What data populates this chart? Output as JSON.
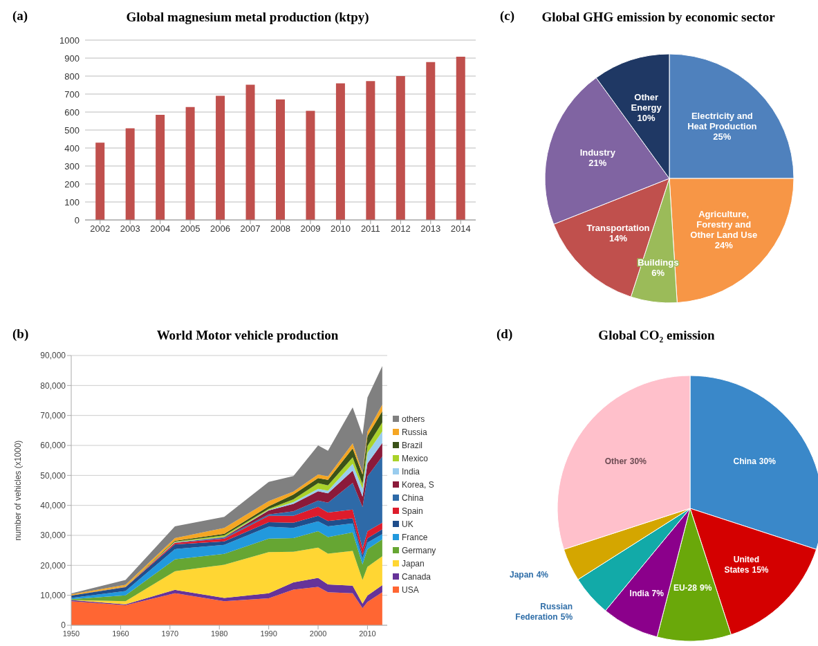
{
  "chart_data": [
    {
      "type": "bar",
      "title": "Global magnesium metal production (ktpy)",
      "annotations": [
        "(a)"
      ],
      "categories": [
        "2002",
        "2003",
        "2004",
        "2005",
        "2006",
        "2007",
        "2008",
        "2009",
        "2010",
        "2011",
        "2012",
        "2013",
        "2014"
      ],
      "values": [
        430,
        510,
        585,
        628,
        690,
        752,
        670,
        607,
        760,
        772,
        800,
        878,
        908
      ],
      "color": "#c0504d",
      "ylim": [
        0,
        1000
      ],
      "yticks": [
        0,
        100,
        200,
        300,
        400,
        500,
        600,
        700,
        800,
        900,
        1000
      ],
      "grid": "y"
    },
    {
      "type": "pie",
      "title": "Global GHG emission by economic sector",
      "annotations": [
        "(c)"
      ],
      "categories": [
        "Electricity and Heat Production",
        "Agriculture, Forestry and Other Land Use",
        "Buildings",
        "Transportation",
        "Industry",
        "Other Energy"
      ],
      "values": [
        25,
        24,
        6,
        14,
        21,
        10
      ],
      "colors": [
        "#4f81bd",
        "#f79646",
        "#9bbb59",
        "#c0504d",
        "#8064a2",
        "#1f3864"
      ],
      "value_labels": [
        "25%",
        "24%",
        "6%",
        "14%",
        "21%",
        "10%"
      ]
    },
    {
      "type": "area",
      "title": "World Motor vehicle production",
      "annotations": [
        "(b)"
      ],
      "ylabel": "number of vehicles (x1000)",
      "stacked": true,
      "legend": "right",
      "grid": "y",
      "x": [
        1950,
        1961,
        1971,
        1981,
        1990,
        1995,
        2000,
        2002,
        2007,
        2009,
        2010,
        2013
      ],
      "xlim": [
        1950,
        2014
      ],
      "xticks": [
        1950,
        1960,
        1970,
        1980,
        1990,
        2000,
        2010
      ],
      "ylim": [
        0,
        90000
      ],
      "yticks": [
        0,
        {
          "value": 10000,
          "label": "10,000"
        },
        {
          "value": 20000,
          "label": "20,000"
        },
        {
          "value": 30000,
          "label": "30,000"
        },
        {
          "value": 40000,
          "label": "40,000"
        },
        {
          "value": 50000,
          "label": "50,000"
        },
        {
          "value": 60000,
          "label": "60,000"
        },
        {
          "value": 70000,
          "label": "70,000"
        },
        {
          "value": 80000,
          "label": "80,000"
        },
        {
          "value": 90000,
          "label": "90,000"
        }
      ],
      "series": [
        {
          "name": "USA",
          "color": "#ff6633",
          "values": [
            8000,
            6700,
            10700,
            8000,
            9000,
            11900,
            12800,
            11000,
            10700,
            5700,
            7800,
            11000
          ]
        },
        {
          "name": "Canada",
          "color": "#663399",
          "values": [
            400,
            300,
            1100,
            1100,
            1700,
            2400,
            3000,
            2600,
            2500,
            1500,
            2100,
            2400
          ]
        },
        {
          "name": "Japan",
          "color": "#ffd633",
          "values": [
            0,
            1000,
            6200,
            11100,
            13700,
            10200,
            10100,
            10300,
            11600,
            7900,
            9600,
            9600
          ]
        },
        {
          "name": "Germany",
          "color": "#66a633",
          "values": [
            300,
            2000,
            4000,
            3600,
            4500,
            4600,
            5500,
            5500,
            6200,
            5200,
            5900,
            5700
          ]
        },
        {
          "name": "France",
          "color": "#2299dd",
          "values": [
            400,
            1400,
            3400,
            3000,
            4000,
            3400,
            3300,
            3600,
            3000,
            2000,
            2200,
            1700
          ]
        },
        {
          "name": "UK",
          "color": "#1f4e8c",
          "values": [
            800,
            1300,
            1600,
            1200,
            1500,
            1700,
            1800,
            1800,
            1700,
            1100,
            1400,
            1600
          ]
        },
        {
          "name": "Spain",
          "color": "#dd1c2c",
          "values": [
            0,
            100,
            500,
            900,
            2100,
            2300,
            3000,
            2800,
            2900,
            2200,
            2400,
            2200
          ]
        },
        {
          "name": "China",
          "color": "#2e6aa8",
          "values": [
            0,
            0,
            100,
            400,
            500,
            1500,
            2100,
            3300,
            8900,
            13800,
            18300,
            22100
          ]
        },
        {
          "name": "Korea, S",
          "color": "#8b1a3a",
          "values": [
            0,
            0,
            0,
            100,
            1300,
            2500,
            3100,
            3100,
            4100,
            3500,
            4300,
            4500
          ]
        },
        {
          "name": "India",
          "color": "#99ccee",
          "values": [
            0,
            0,
            100,
            100,
            200,
            600,
            800,
            900,
            2300,
            2600,
            3500,
            3900
          ]
        },
        {
          "name": "Mexico",
          "color": "#aad22a",
          "values": [
            0,
            100,
            200,
            500,
            300,
            900,
            1900,
            1800,
            2100,
            1600,
            2300,
            3000
          ]
        },
        {
          "name": "Brazil",
          "color": "#3b5218",
          "values": [
            0,
            100,
            300,
            500,
            900,
            1600,
            1700,
            1800,
            3000,
            3200,
            3400,
            3700
          ]
        },
        {
          "name": "Russia",
          "color": "#f5a623",
          "values": [
            400,
            500,
            900,
            2000,
            1700,
            1000,
            1200,
            1200,
            1700,
            700,
            1400,
            2200
          ]
        },
        {
          "name": "others",
          "color": "#808080",
          "values": [
            300,
            1600,
            3900,
            3700,
            6400,
            5200,
            9700,
            8500,
            12000,
            12500,
            11400,
            12900
          ]
        }
      ]
    },
    {
      "type": "pie",
      "title": "Global CO₂ emission",
      "annotations": [
        "(d)"
      ],
      "categories": [
        "China",
        "United States",
        "EU-28",
        "India",
        "Russian Federation",
        "Japan",
        "Other"
      ],
      "values": [
        30,
        15,
        9,
        7,
        5,
        4,
        30
      ],
      "colors": [
        "#3a88c9",
        "#d40000",
        "#6aa80a",
        "#8b008b",
        "#12aaa8",
        "#d4a600",
        "#ffc0cb"
      ],
      "value_labels": [
        "30%",
        "15%",
        "9%",
        "7%",
        "5%",
        "4%",
        "30%"
      ]
    }
  ]
}
